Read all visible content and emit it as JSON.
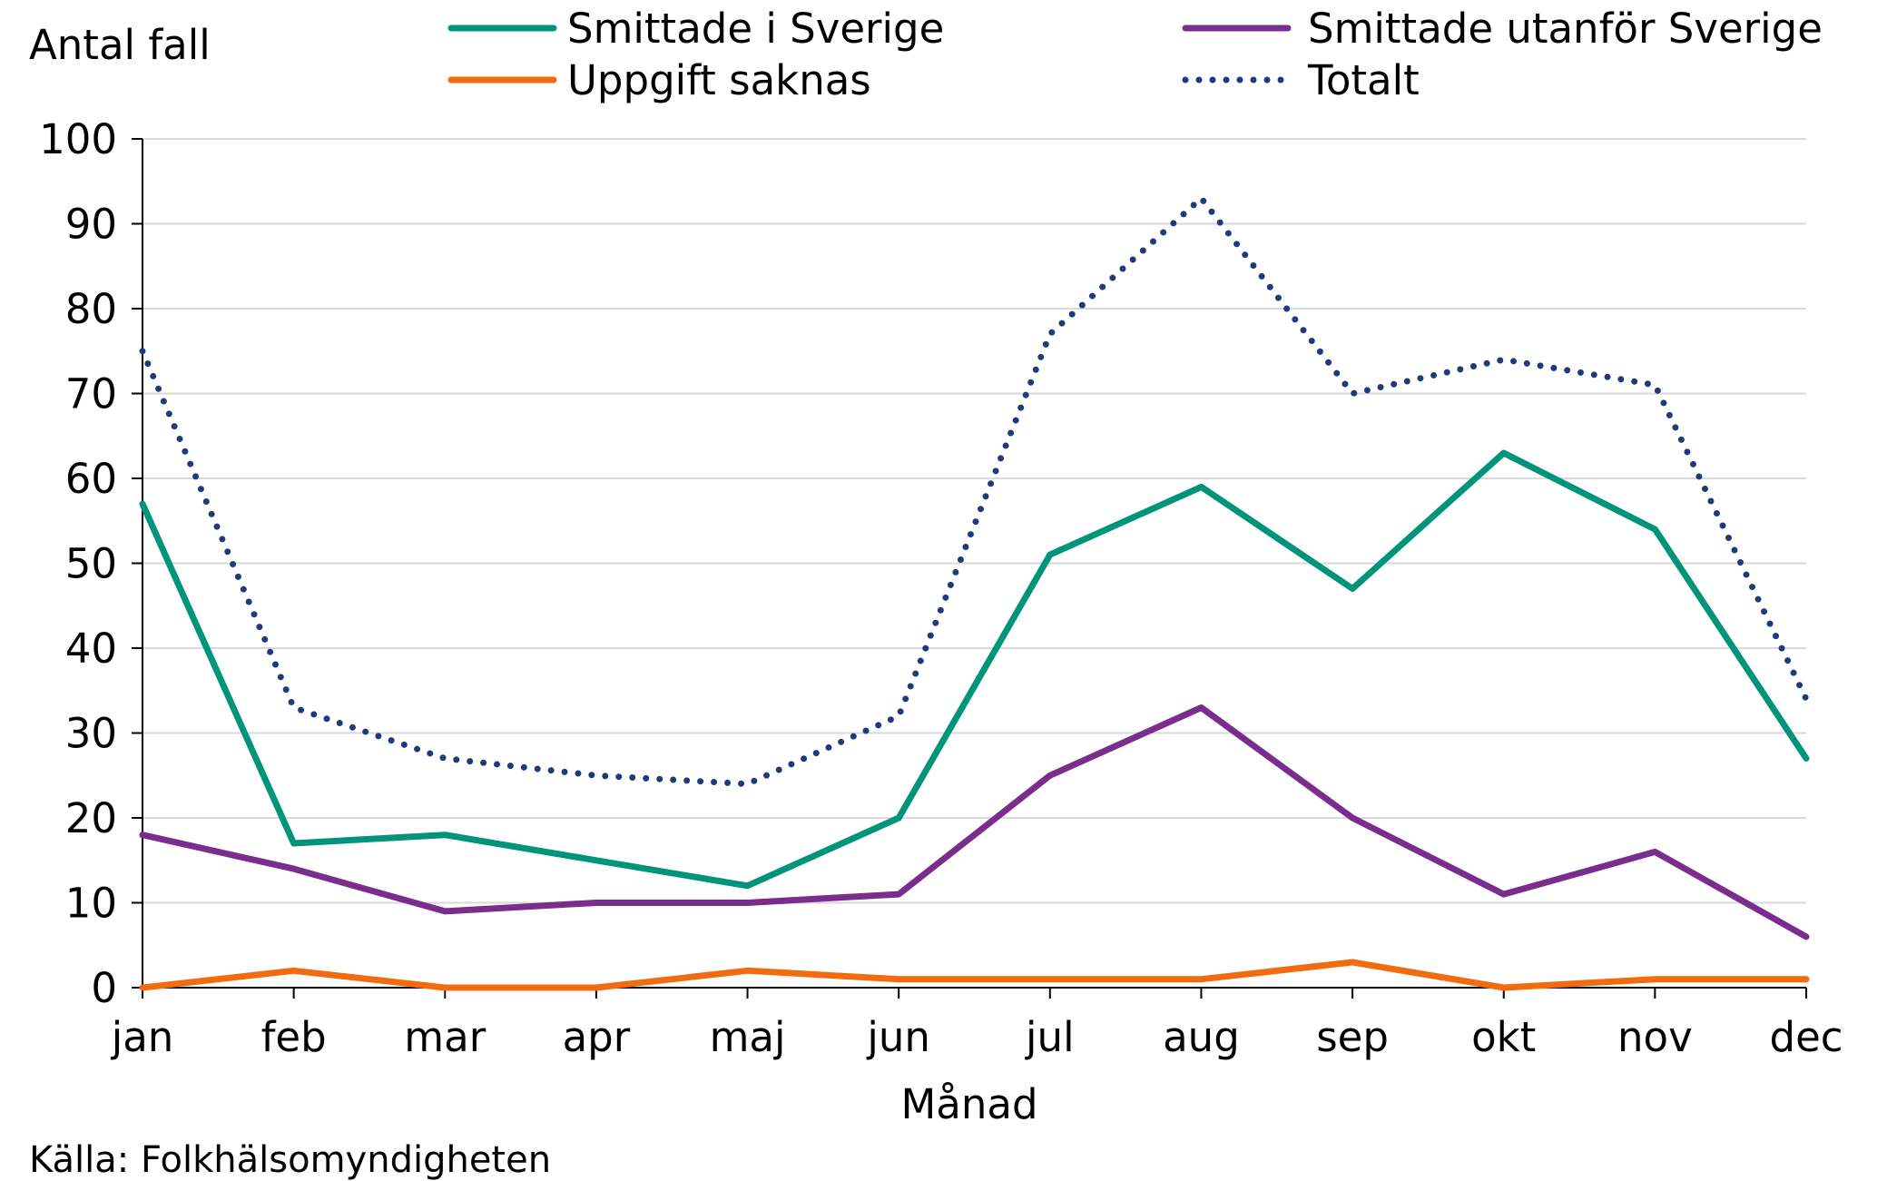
{
  "chart_data": {
    "type": "line",
    "ylabel": "Antal fall",
    "xlabel": "Månad",
    "ylim": [
      0,
      100
    ],
    "yticks": [
      0,
      10,
      20,
      30,
      40,
      50,
      60,
      70,
      80,
      90,
      100
    ],
    "grid": true,
    "legend_position": "top",
    "categories": [
      "jan",
      "feb",
      "mar",
      "apr",
      "maj",
      "jun",
      "jul",
      "aug",
      "sep",
      "okt",
      "nov",
      "dec"
    ],
    "series": [
      {
        "name": "Smittade i Sverige",
        "color": "#00957a",
        "style": "solid",
        "values": [
          57,
          17,
          18,
          15,
          12,
          20,
          51,
          59,
          47,
          63,
          54,
          27
        ]
      },
      {
        "name": "Smittade utanför Sverige",
        "color": "#7b2d8e",
        "style": "solid",
        "values": [
          18,
          14,
          9,
          10,
          10,
          11,
          25,
          33,
          20,
          11,
          16,
          6
        ]
      },
      {
        "name": "Uppgift saknas",
        "color": "#f26b0f",
        "style": "solid",
        "values": [
          0,
          2,
          0,
          0,
          2,
          1,
          1,
          1,
          3,
          0,
          1,
          1
        ]
      },
      {
        "name": "Totalt",
        "color": "#1f3a7a",
        "style": "dotted",
        "values": [
          75,
          33,
          27,
          25,
          24,
          32,
          77,
          93,
          70,
          74,
          71,
          34
        ]
      }
    ]
  },
  "source": "Källa: Folkhälsomyndigheten"
}
